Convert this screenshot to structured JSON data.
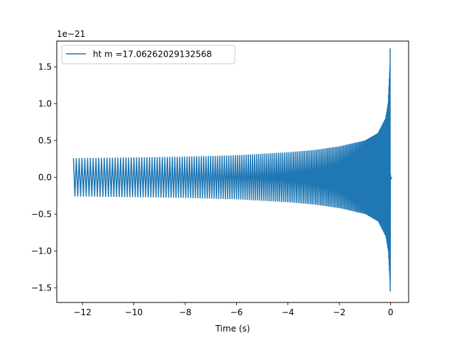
{
  "chart_data": {
    "type": "line",
    "title": "",
    "xlabel": "Time (s)",
    "ylabel": "",
    "y_scale_label": "1e−21",
    "xlim": [
      -13.0,
      0.7
    ],
    "ylim": [
      -1.7,
      1.85
    ],
    "x_ticks": [
      -12,
      -10,
      -8,
      -6,
      -4,
      -2,
      0
    ],
    "x_tick_labels": [
      "−12",
      "−10",
      "−8",
      "−6",
      "−4",
      "−2",
      "0"
    ],
    "y_ticks": [
      -1.5,
      -1.0,
      -0.5,
      0.0,
      0.5,
      1.0,
      1.5
    ],
    "y_tick_labels": [
      "−1.5",
      "−1.0",
      "−0.5",
      "0.0",
      "0.5",
      "1.0",
      "1.5"
    ],
    "grid": false,
    "legend": {
      "placement": "top-left"
    },
    "series": [
      {
        "name": "ht m =17.06262029132568",
        "color": "#1f77b4",
        "t_start": -12.35,
        "t_merger": -0.02,
        "t_end": 0.05,
        "envelope": {
          "t": [
            -12.35,
            -10.0,
            -8.0,
            -6.0,
            -4.0,
            -3.0,
            -2.0,
            -1.0,
            -0.5,
            -0.2,
            -0.1,
            -0.03,
            -0.01
          ],
          "upper": [
            0.26,
            0.27,
            0.28,
            0.3,
            0.34,
            0.37,
            0.42,
            0.5,
            0.6,
            0.8,
            1.0,
            1.5,
            1.75
          ],
          "lower": [
            -0.26,
            -0.27,
            -0.28,
            -0.3,
            -0.34,
            -0.37,
            -0.42,
            -0.5,
            -0.6,
            -0.8,
            -1.0,
            -1.4,
            -1.55
          ]
        }
      }
    ]
  }
}
